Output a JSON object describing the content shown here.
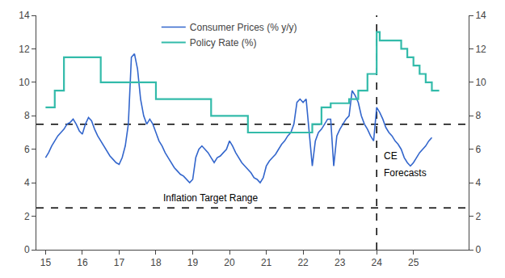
{
  "chart_data": {
    "type": "line",
    "xlim": [
      14.75,
      26.5
    ],
    "ylim": [
      0,
      14
    ],
    "xticks": [
      15,
      16,
      17,
      18,
      19,
      20,
      21,
      22,
      23,
      24,
      25
    ],
    "yticks": [
      0,
      2,
      4,
      6,
      8,
      10,
      12,
      14
    ],
    "y2lim": [
      0,
      14
    ],
    "y2ticks": [
      0,
      2,
      4,
      6,
      8,
      10,
      12,
      14
    ],
    "grid": false,
    "legend": "upper left",
    "reference_lines": {
      "y": [
        7.5,
        2.5
      ],
      "x": [
        24.0
      ],
      "color": "black",
      "line_style": "dashed"
    },
    "annotations": [
      {
        "text": "Inflation Target Range",
        "x": 19.5,
        "y": 3.1
      },
      {
        "text": "CE",
        "x": 24.15,
        "y": 5.6
      },
      {
        "text": "Forecasts",
        "x": 24.15,
        "y": 4.6
      }
    ],
    "series": [
      {
        "name": "Consumer Prices (% y/y)",
        "type": "line",
        "color": "#3366CC",
        "x": [
          15.0,
          15.083,
          15.167,
          15.25,
          15.333,
          15.417,
          15.5,
          15.583,
          15.667,
          15.75,
          15.833,
          15.917,
          16.0,
          16.083,
          16.167,
          16.25,
          16.333,
          16.417,
          16.5,
          16.583,
          16.667,
          16.75,
          16.833,
          16.917,
          17.0,
          17.083,
          17.167,
          17.25,
          17.333,
          17.417,
          17.5,
          17.583,
          17.667,
          17.75,
          17.833,
          17.917,
          18.0,
          18.083,
          18.167,
          18.25,
          18.333,
          18.417,
          18.5,
          18.583,
          18.667,
          18.75,
          18.833,
          18.917,
          19.0,
          19.083,
          19.167,
          19.25,
          19.333,
          19.417,
          19.5,
          19.583,
          19.667,
          19.75,
          19.833,
          19.917,
          20.0,
          20.083,
          20.167,
          20.25,
          20.333,
          20.417,
          20.5,
          20.583,
          20.667,
          20.75,
          20.833,
          20.917,
          21.0,
          21.083,
          21.167,
          21.25,
          21.333,
          21.417,
          21.5,
          21.583,
          21.667,
          21.75,
          21.833,
          21.917,
          22.0,
          22.083,
          22.167,
          22.25,
          22.333,
          22.417,
          22.5,
          22.583,
          22.667,
          22.75,
          22.833,
          22.917,
          23.0,
          23.083,
          23.167,
          23.25,
          23.333,
          23.417,
          23.5,
          23.583,
          23.667,
          23.75,
          23.833,
          23.917,
          24.0,
          24.083,
          24.167,
          24.25,
          24.333,
          24.417,
          24.5,
          24.583,
          24.667,
          24.75,
          24.833,
          24.917,
          25.0,
          25.083,
          25.167,
          25.25,
          25.333,
          25.417,
          25.5
        ],
        "values": [
          5.5,
          5.8,
          6.2,
          6.5,
          6.8,
          7.0,
          7.2,
          7.5,
          7.6,
          7.8,
          7.5,
          7.1,
          6.9,
          7.5,
          7.9,
          7.7,
          7.2,
          6.8,
          6.5,
          6.2,
          5.9,
          5.6,
          5.4,
          5.2,
          5.1,
          5.5,
          6.2,
          7.5,
          11.5,
          11.7,
          10.8,
          9.0,
          8.0,
          7.5,
          7.8,
          7.5,
          7.0,
          6.5,
          6.2,
          5.8,
          5.5,
          5.2,
          4.9,
          4.7,
          4.5,
          4.4,
          4.2,
          4.0,
          4.2,
          5.5,
          6.0,
          6.2,
          6.0,
          5.8,
          5.5,
          5.2,
          5.5,
          5.6,
          5.8,
          6.0,
          6.5,
          6.2,
          5.8,
          5.5,
          5.2,
          5.0,
          4.8,
          4.6,
          4.3,
          4.2,
          4.0,
          4.3,
          5.0,
          5.3,
          5.5,
          5.7,
          6.0,
          6.3,
          6.5,
          6.8,
          7.0,
          7.5,
          8.8,
          9.0,
          8.8,
          9.0,
          7.0,
          5.0,
          6.5,
          7.0,
          7.2,
          7.5,
          7.8,
          7.8,
          5.0,
          6.8,
          7.2,
          7.5,
          7.8,
          8.0,
          9.5,
          9.2,
          8.8,
          8.0,
          7.5,
          7.2,
          6.8,
          6.5,
          8.5,
          8.2,
          7.8,
          7.3,
          7.0,
          6.8,
          6.5,
          6.3,
          6.0,
          5.5,
          5.2,
          5.0,
          5.2,
          5.5,
          5.8,
          6.0,
          6.2,
          6.5,
          6.7
        ]
      },
      {
        "name": "Policy Rate (%)",
        "type": "step",
        "color": "#33BBAA",
        "x": [
          15.0,
          15.25,
          15.5,
          16.5,
          17.25,
          18.0,
          18.5,
          19.5,
          20.5,
          21.0,
          22.0,
          22.25,
          22.5,
          22.75,
          23.0,
          23.25,
          23.5,
          23.75,
          24.0,
          24.083,
          24.5,
          24.667,
          24.833,
          25.0,
          25.167,
          25.333,
          25.5,
          25.7
        ],
        "values": [
          8.5,
          9.5,
          11.5,
          10.0,
          10.0,
          9.0,
          9.0,
          8.0,
          7.0,
          7.0,
          7.0,
          7.5,
          8.5,
          8.75,
          8.75,
          9.0,
          9.5,
          10.5,
          13.0,
          12.5,
          12.5,
          12.0,
          11.5,
          11.0,
          10.5,
          10.0,
          9.5,
          9.5
        ]
      }
    ]
  }
}
